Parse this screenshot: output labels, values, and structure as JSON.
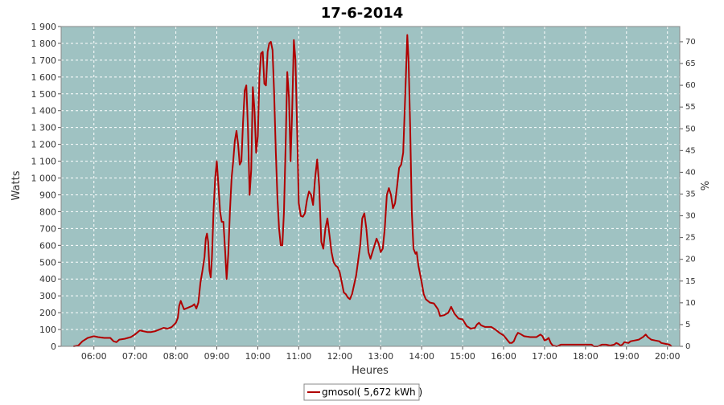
{
  "colors": {
    "plot_bg": "#9fc2c2",
    "line": "#b00000",
    "grid": "#ffffff",
    "frame": "#888888"
  },
  "chart_data": {
    "type": "line",
    "title": "17-6-2014",
    "xlabel": "Heures",
    "ylabel": "Watts",
    "y2label": "%",
    "x_unit": "hours",
    "xlim": [
      5.2,
      20.3
    ],
    "ylim": [
      0,
      1900
    ],
    "y2lim": [
      0,
      73.5
    ],
    "x_ticks": [
      {
        "value": 6,
        "label": "06:00"
      },
      {
        "value": 7,
        "label": "07:00"
      },
      {
        "value": 8,
        "label": "08:00"
      },
      {
        "value": 9,
        "label": "09:00"
      },
      {
        "value": 10,
        "label": "10:00"
      },
      {
        "value": 11,
        "label": "11:00"
      },
      {
        "value": 12,
        "label": "12:00"
      },
      {
        "value": 13,
        "label": "13:00"
      },
      {
        "value": 14,
        "label": "14:00"
      },
      {
        "value": 15,
        "label": "15:00"
      },
      {
        "value": 16,
        "label": "16:00"
      },
      {
        "value": 17,
        "label": "17:00"
      },
      {
        "value": 18,
        "label": "18:00"
      },
      {
        "value": 19,
        "label": "19:00"
      },
      {
        "value": 20,
        "label": "20:00"
      }
    ],
    "y_ticks": [
      {
        "value": 0,
        "label": "0"
      },
      {
        "value": 100,
        "label": "100"
      },
      {
        "value": 200,
        "label": "200"
      },
      {
        "value": 300,
        "label": "300"
      },
      {
        "value": 400,
        "label": "400"
      },
      {
        "value": 500,
        "label": "500"
      },
      {
        "value": 600,
        "label": "600"
      },
      {
        "value": 700,
        "label": "700"
      },
      {
        "value": 800,
        "label": "800"
      },
      {
        "value": 900,
        "label": "900"
      },
      {
        "value": 1000,
        "label": "1 000"
      },
      {
        "value": 1100,
        "label": "1 100"
      },
      {
        "value": 1200,
        "label": "1 200"
      },
      {
        "value": 1300,
        "label": "1 300"
      },
      {
        "value": 1400,
        "label": "1 400"
      },
      {
        "value": 1500,
        "label": "1 500"
      },
      {
        "value": 1600,
        "label": "1 600"
      },
      {
        "value": 1700,
        "label": "1 700"
      },
      {
        "value": 1800,
        "label": "1 800"
      },
      {
        "value": 1900,
        "label": "1 900"
      }
    ],
    "y2_ticks": [
      {
        "value": 0,
        "label": "0"
      },
      {
        "value": 5,
        "label": "5"
      },
      {
        "value": 10,
        "label": "10"
      },
      {
        "value": 15,
        "label": "15"
      },
      {
        "value": 20,
        "label": "20"
      },
      {
        "value": 25,
        "label": "25"
      },
      {
        "value": 30,
        "label": "30"
      },
      {
        "value": 35,
        "label": "35"
      },
      {
        "value": 40,
        "label": "40"
      },
      {
        "value": 45,
        "label": "45"
      },
      {
        "value": 50,
        "label": "50"
      },
      {
        "value": 55,
        "label": "55"
      },
      {
        "value": 60,
        "label": "60"
      },
      {
        "value": 65,
        "label": "65"
      },
      {
        "value": 70,
        "label": "70"
      }
    ],
    "grid": true,
    "legend_position": "bottom-center",
    "series": [
      {
        "name": "gmosol( 5,672 kWh )",
        "color": "#b00000",
        "points": [
          [
            5.5,
            0
          ],
          [
            5.62,
            5
          ],
          [
            5.72,
            30
          ],
          [
            5.85,
            50
          ],
          [
            6.0,
            60
          ],
          [
            6.1,
            55
          ],
          [
            6.25,
            50
          ],
          [
            6.4,
            50
          ],
          [
            6.48,
            30
          ],
          [
            6.55,
            25
          ],
          [
            6.62,
            40
          ],
          [
            6.75,
            45
          ],
          [
            6.9,
            55
          ],
          [
            7.0,
            70
          ],
          [
            7.05,
            80
          ],
          [
            7.12,
            95
          ],
          [
            7.2,
            90
          ],
          [
            7.3,
            85
          ],
          [
            7.4,
            85
          ],
          [
            7.5,
            90
          ],
          [
            7.6,
            100
          ],
          [
            7.7,
            110
          ],
          [
            7.8,
            105
          ],
          [
            7.9,
            115
          ],
          [
            8.0,
            140
          ],
          [
            8.05,
            170
          ],
          [
            8.08,
            240
          ],
          [
            8.12,
            270
          ],
          [
            8.15,
            250
          ],
          [
            8.2,
            220
          ],
          [
            8.3,
            230
          ],
          [
            8.4,
            240
          ],
          [
            8.45,
            250
          ],
          [
            8.5,
            225
          ],
          [
            8.55,
            260
          ],
          [
            8.6,
            380
          ],
          [
            8.65,
            450
          ],
          [
            8.7,
            530
          ],
          [
            8.73,
            640
          ],
          [
            8.76,
            670
          ],
          [
            8.79,
            620
          ],
          [
            8.82,
            450
          ],
          [
            8.85,
            410
          ],
          [
            8.88,
            520
          ],
          [
            8.92,
            800
          ],
          [
            8.96,
            1000
          ],
          [
            9.0,
            1100
          ],
          [
            9.04,
            950
          ],
          [
            9.08,
            800
          ],
          [
            9.12,
            740
          ],
          [
            9.16,
            740
          ],
          [
            9.2,
            580
          ],
          [
            9.24,
            400
          ],
          [
            9.28,
            550
          ],
          [
            9.32,
            800
          ],
          [
            9.36,
            1000
          ],
          [
            9.4,
            1100
          ],
          [
            9.44,
            1220
          ],
          [
            9.48,
            1280
          ],
          [
            9.52,
            1200
          ],
          [
            9.56,
            1080
          ],
          [
            9.6,
            1100
          ],
          [
            9.64,
            1330
          ],
          [
            9.68,
            1520
          ],
          [
            9.72,
            1550
          ],
          [
            9.76,
            1300
          ],
          [
            9.8,
            900
          ],
          [
            9.84,
            1050
          ],
          [
            9.88,
            1540
          ],
          [
            9.92,
            1400
          ],
          [
            9.96,
            1150
          ],
          [
            10.0,
            1250
          ],
          [
            10.04,
            1600
          ],
          [
            10.08,
            1740
          ],
          [
            10.12,
            1750
          ],
          [
            10.16,
            1560
          ],
          [
            10.2,
            1550
          ],
          [
            10.24,
            1750
          ],
          [
            10.28,
            1800
          ],
          [
            10.32,
            1810
          ],
          [
            10.36,
            1760
          ],
          [
            10.4,
            1500
          ],
          [
            10.44,
            1150
          ],
          [
            10.48,
            880
          ],
          [
            10.52,
            700
          ],
          [
            10.56,
            600
          ],
          [
            10.6,
            600
          ],
          [
            10.64,
            800
          ],
          [
            10.68,
            1200
          ],
          [
            10.72,
            1630
          ],
          [
            10.76,
            1480
          ],
          [
            10.8,
            1100
          ],
          [
            10.84,
            1400
          ],
          [
            10.88,
            1820
          ],
          [
            10.92,
            1700
          ],
          [
            10.96,
            1300
          ],
          [
            11.0,
            850
          ],
          [
            11.05,
            775
          ],
          [
            11.1,
            770
          ],
          [
            11.15,
            790
          ],
          [
            11.2,
            870
          ],
          [
            11.25,
            920
          ],
          [
            11.3,
            900
          ],
          [
            11.35,
            840
          ],
          [
            11.4,
            1000
          ],
          [
            11.45,
            1110
          ],
          [
            11.5,
            950
          ],
          [
            11.55,
            620
          ],
          [
            11.6,
            580
          ],
          [
            11.65,
            700
          ],
          [
            11.7,
            760
          ],
          [
            11.75,
            660
          ],
          [
            11.8,
            560
          ],
          [
            11.85,
            500
          ],
          [
            11.9,
            480
          ],
          [
            11.95,
            470
          ],
          [
            12.0,
            440
          ],
          [
            12.05,
            380
          ],
          [
            12.1,
            320
          ],
          [
            12.15,
            310
          ],
          [
            12.2,
            290
          ],
          [
            12.25,
            280
          ],
          [
            12.3,
            310
          ],
          [
            12.4,
            420
          ],
          [
            12.5,
            600
          ],
          [
            12.55,
            760
          ],
          [
            12.6,
            790
          ],
          [
            12.65,
            700
          ],
          [
            12.7,
            560
          ],
          [
            12.75,
            520
          ],
          [
            12.8,
            560
          ],
          [
            12.85,
            600
          ],
          [
            12.9,
            640
          ],
          [
            12.95,
            610
          ],
          [
            13.0,
            560
          ],
          [
            13.05,
            580
          ],
          [
            13.1,
            700
          ],
          [
            13.15,
            900
          ],
          [
            13.2,
            940
          ],
          [
            13.25,
            900
          ],
          [
            13.3,
            820
          ],
          [
            13.35,
            850
          ],
          [
            13.4,
            950
          ],
          [
            13.45,
            1060
          ],
          [
            13.5,
            1080
          ],
          [
            13.55,
            1150
          ],
          [
            13.6,
            1500
          ],
          [
            13.65,
            1850
          ],
          [
            13.68,
            1700
          ],
          [
            13.72,
            1300
          ],
          [
            13.76,
            800
          ],
          [
            13.8,
            580
          ],
          [
            13.85,
            550
          ],
          [
            13.88,
            560
          ],
          [
            13.92,
            480
          ],
          [
            14.0,
            380
          ],
          [
            14.05,
            310
          ],
          [
            14.1,
            280
          ],
          [
            14.2,
            260
          ],
          [
            14.3,
            255
          ],
          [
            14.4,
            220
          ],
          [
            14.45,
            180
          ],
          [
            14.55,
            185
          ],
          [
            14.65,
            200
          ],
          [
            14.72,
            235
          ],
          [
            14.8,
            195
          ],
          [
            14.9,
            165
          ],
          [
            15.0,
            160
          ],
          [
            15.1,
            120
          ],
          [
            15.2,
            105
          ],
          [
            15.3,
            110
          ],
          [
            15.35,
            130
          ],
          [
            15.4,
            140
          ],
          [
            15.45,
            125
          ],
          [
            15.55,
            115
          ],
          [
            15.7,
            115
          ],
          [
            15.8,
            100
          ],
          [
            15.9,
            80
          ],
          [
            16.0,
            65
          ],
          [
            16.05,
            50
          ],
          [
            16.1,
            35
          ],
          [
            16.15,
            20
          ],
          [
            16.2,
            20
          ],
          [
            16.25,
            30
          ],
          [
            16.3,
            60
          ],
          [
            16.35,
            80
          ],
          [
            16.4,
            75
          ],
          [
            16.5,
            60
          ],
          [
            16.65,
            55
          ],
          [
            16.8,
            55
          ],
          [
            16.9,
            70
          ],
          [
            16.95,
            60
          ],
          [
            17.0,
            35
          ],
          [
            17.05,
            40
          ],
          [
            17.1,
            50
          ],
          [
            17.15,
            20
          ],
          [
            17.2,
            5
          ],
          [
            17.3,
            0
          ],
          [
            17.4,
            10
          ],
          [
            17.6,
            10
          ],
          [
            17.8,
            10
          ],
          [
            18.0,
            10
          ],
          [
            18.15,
            10
          ],
          [
            18.2,
            0
          ],
          [
            18.3,
            0
          ],
          [
            18.4,
            10
          ],
          [
            18.5,
            10
          ],
          [
            18.6,
            5
          ],
          [
            18.7,
            10
          ],
          [
            18.75,
            20
          ],
          [
            18.8,
            15
          ],
          [
            18.85,
            5
          ],
          [
            18.9,
            10
          ],
          [
            18.95,
            25
          ],
          [
            19.05,
            20
          ],
          [
            19.1,
            30
          ],
          [
            19.2,
            35
          ],
          [
            19.3,
            40
          ],
          [
            19.4,
            55
          ],
          [
            19.47,
            70
          ],
          [
            19.52,
            55
          ],
          [
            19.6,
            40
          ],
          [
            19.7,
            35
          ],
          [
            19.8,
            30
          ],
          [
            19.85,
            20
          ],
          [
            19.95,
            15
          ],
          [
            20.05,
            10
          ],
          [
            20.1,
            0
          ]
        ]
      }
    ]
  }
}
